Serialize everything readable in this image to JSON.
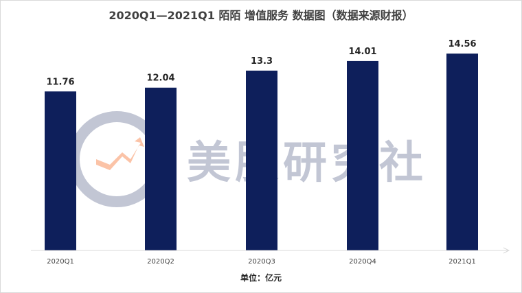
{
  "chart_data": {
    "type": "bar",
    "title": "2020Q1—2021Q1 陌陌 增值服务 数据图（数据来源财报）",
    "categories": [
      "2020Q1",
      "2020Q2",
      "2020Q3",
      "2020Q4",
      "2021Q1"
    ],
    "values": [
      11.76,
      12.04,
      13.3,
      14.01,
      14.56
    ],
    "value_labels": [
      "11.76",
      "12.04",
      "13.3",
      "14.01",
      "14.56"
    ],
    "unit_label": "单位：亿元",
    "ylim": [
      0,
      17
    ],
    "grid": false,
    "legend": "none",
    "bar_color": "#0e1f5b"
  },
  "watermark": {
    "text": "美股研究社",
    "icon": "magnifier-arrow-logo"
  }
}
